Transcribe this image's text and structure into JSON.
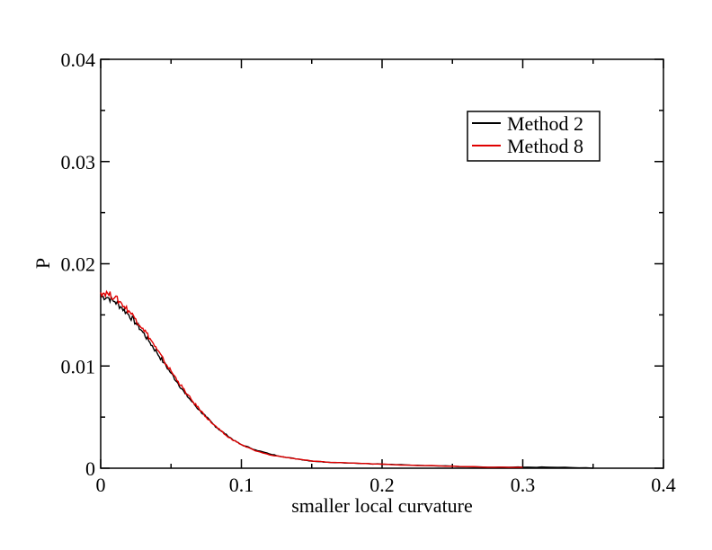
{
  "chart_data": {
    "type": "line",
    "title": "",
    "xlabel": "smaller local curvature",
    "ylabel": "P",
    "xlim": [
      0,
      0.4
    ],
    "ylim": [
      0,
      0.04
    ],
    "x_ticks": [
      0,
      0.1,
      0.2,
      0.3,
      0.4
    ],
    "y_ticks": [
      0,
      0.01,
      0.02,
      0.03,
      0.04
    ],
    "x_tick_labels": [
      "0",
      "0.1",
      "0.2",
      "0.3",
      "0.4"
    ],
    "y_tick_labels": [
      "0",
      "0.01",
      "0.02",
      "0.03",
      "0.04"
    ],
    "grid": false,
    "legend_position": "top-right",
    "series": [
      {
        "name": "Method 2",
        "color": "#000000",
        "x": [
          0.0,
          0.005,
          0.01,
          0.015,
          0.02,
          0.025,
          0.03,
          0.035,
          0.04,
          0.045,
          0.05,
          0.055,
          0.06,
          0.065,
          0.07,
          0.075,
          0.08,
          0.085,
          0.09,
          0.095,
          0.1,
          0.11,
          0.12,
          0.13,
          0.14,
          0.15,
          0.16,
          0.18,
          0.2,
          0.22,
          0.25,
          0.28,
          0.3,
          0.32,
          0.35
        ],
        "y": [
          0.0168,
          0.0167,
          0.0163,
          0.0157,
          0.015,
          0.0142,
          0.0133,
          0.0123,
          0.0113,
          0.0103,
          0.0093,
          0.0083,
          0.0073,
          0.0065,
          0.0057,
          0.005,
          0.0043,
          0.0037,
          0.0032,
          0.0027,
          0.0023,
          0.0018,
          0.0014,
          0.0011,
          0.0009,
          0.0007,
          0.0006,
          0.0005,
          0.0004,
          0.0003,
          0.0002,
          0.0001,
          0.0001,
          0.0001,
          0.0
        ]
      },
      {
        "name": "Method 8",
        "color": "#e00000",
        "x": [
          0.0,
          0.005,
          0.01,
          0.015,
          0.02,
          0.025,
          0.03,
          0.035,
          0.04,
          0.045,
          0.05,
          0.055,
          0.06,
          0.065,
          0.07,
          0.075,
          0.08,
          0.085,
          0.09,
          0.095,
          0.1,
          0.11,
          0.12,
          0.13,
          0.14,
          0.15,
          0.16,
          0.18,
          0.2,
          0.22,
          0.25,
          0.28,
          0.3
        ],
        "y": [
          0.0172,
          0.0171,
          0.0167,
          0.0161,
          0.0154,
          0.0146,
          0.0137,
          0.0127,
          0.0116,
          0.0105,
          0.0095,
          0.0085,
          0.0075,
          0.0066,
          0.0058,
          0.005,
          0.0043,
          0.0037,
          0.0031,
          0.0027,
          0.0023,
          0.0017,
          0.0013,
          0.0011,
          0.0009,
          0.0007,
          0.0006,
          0.0005,
          0.0004,
          0.0003,
          0.0002,
          0.0001,
          0.0001
        ]
      }
    ]
  }
}
